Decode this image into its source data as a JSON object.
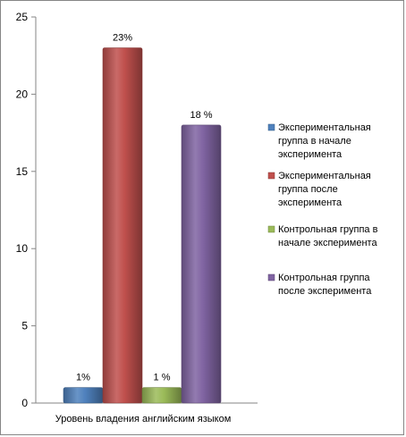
{
  "chart_data": {
    "type": "bar",
    "categories": [
      "Уровень владения английским языком"
    ],
    "ylim": [
      0,
      25
    ],
    "yticks": [
      "0",
      "5",
      "10",
      "15",
      "20",
      "25"
    ],
    "grid": false,
    "legend_position": "right",
    "series": [
      {
        "name": "Экспериментальная группа в начале эксперимента",
        "legend_lines": [
          "Экспериментальная",
          "группа в начале",
          "эксперимента"
        ],
        "values": [
          1
        ],
        "label": "1%",
        "color": "#4F81BD"
      },
      {
        "name": "Экспериментальная группа после эксперимента",
        "legend_lines": [
          "Экспериментальная",
          "группа после",
          "эксперимента"
        ],
        "values": [
          23
        ],
        "label": "23%",
        "color": "#C0504D"
      },
      {
        "name": "Контрольная группа в начале эксперимента",
        "legend_lines": [
          "Контрольная группа в",
          "начале эксперимента"
        ],
        "values": [
          1
        ],
        "label": "1 %",
        "color": "#9BBB59"
      },
      {
        "name": "Контрольная группа после эксперимента",
        "legend_lines": [
          "Контрольная группа",
          "после эксперимента"
        ],
        "values": [
          18
        ],
        "label": "18 %",
        "color": "#8064A2"
      }
    ]
  }
}
